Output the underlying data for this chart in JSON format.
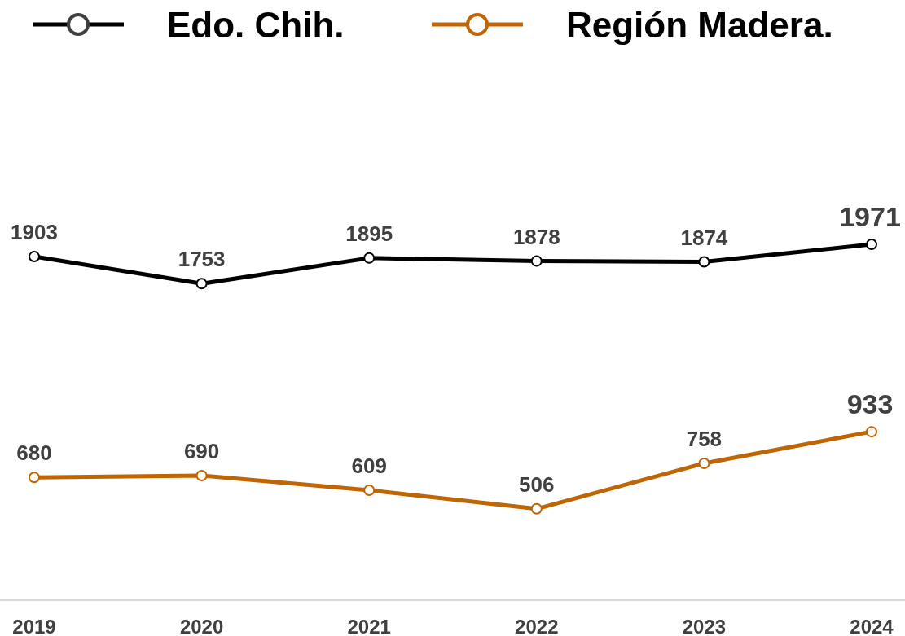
{
  "chart_data": {
    "type": "line",
    "categories": [
      "2019",
      "2020",
      "2021",
      "2022",
      "2023",
      "2024"
    ],
    "series": [
      {
        "name": "Edo. Chih.",
        "color": "#000000",
        "values": [
          1903,
          1753,
          1895,
          1878,
          1874,
          1971
        ]
      },
      {
        "name": "Región Madera.",
        "color": "#bf6504",
        "values": [
          680,
          690,
          609,
          506,
          758,
          933
        ]
      }
    ],
    "data_labels": true,
    "legend": "top",
    "marker": "circle",
    "line_style": "solid",
    "grid": false
  }
}
